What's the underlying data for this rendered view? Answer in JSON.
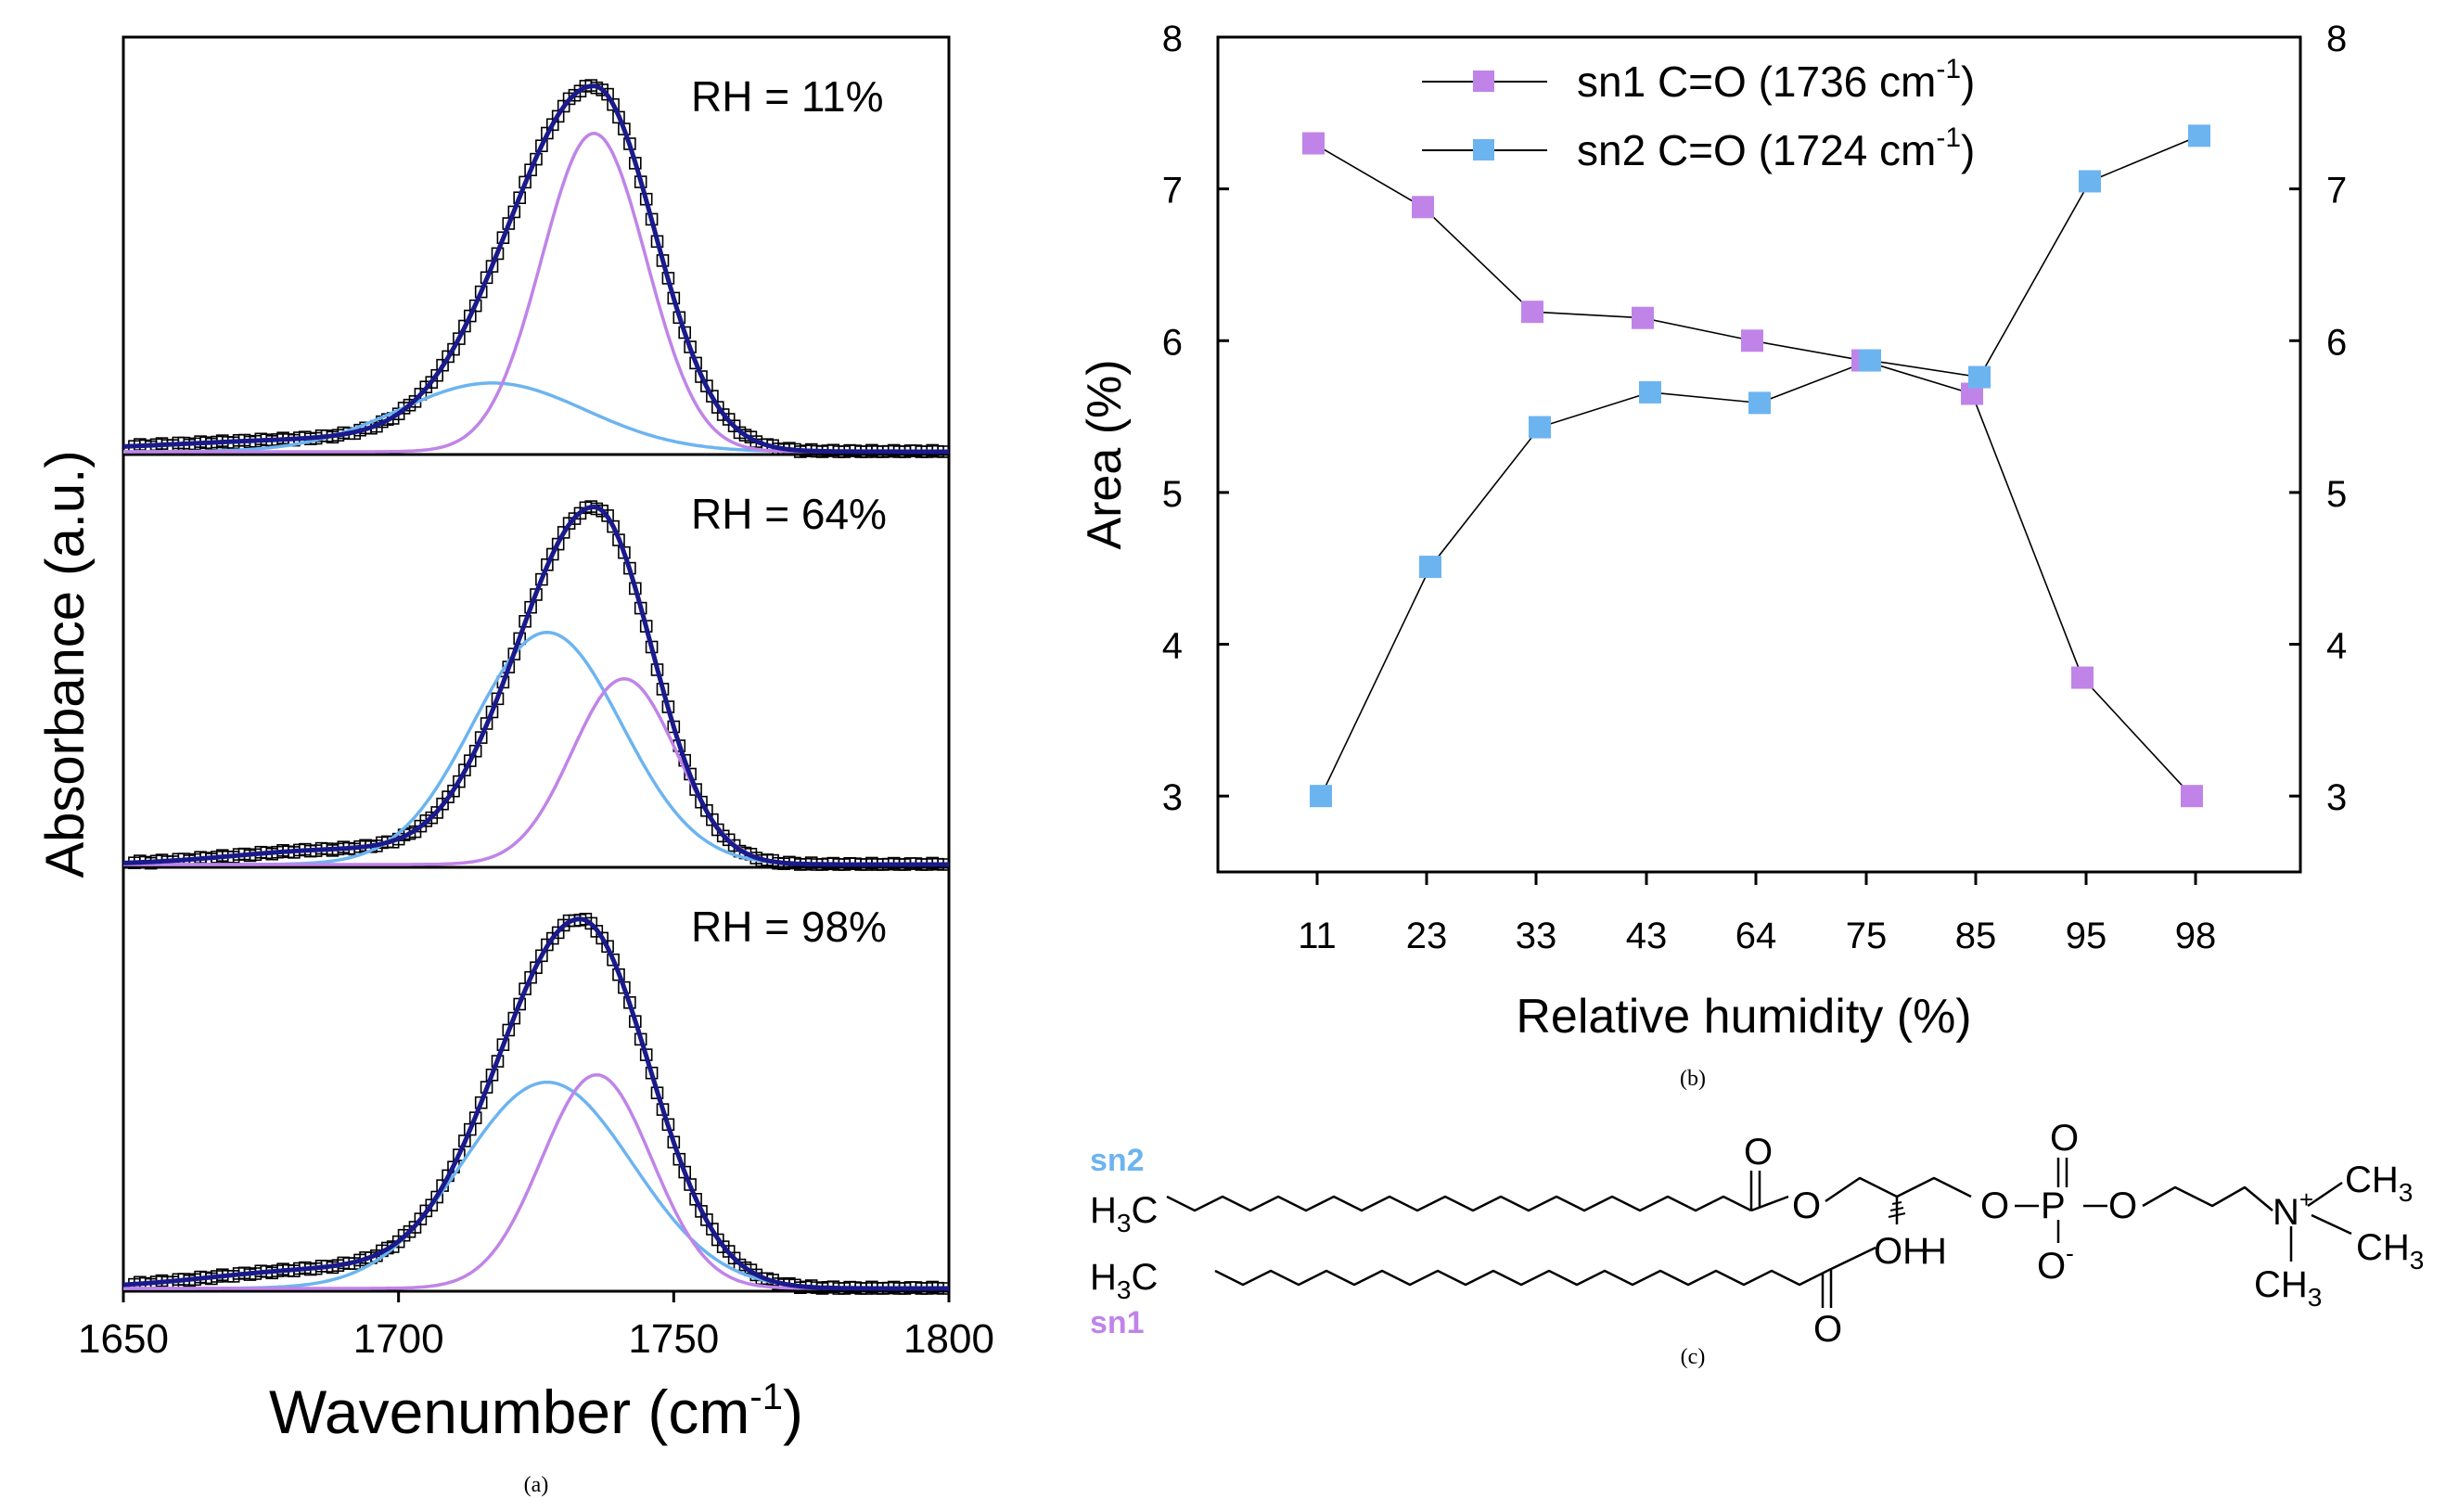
{
  "chart_data": [
    {
      "type": "line",
      "panel": "a",
      "caption": "(a)",
      "title": "",
      "xlabel": "Wavenumber (cm",
      "xlabel_sup": "-1",
      "xlabel_close": ")",
      "ylabel": "Absorbance (a.u.)",
      "xlim": [
        1650,
        1800
      ],
      "x_ticks": [
        1650,
        1700,
        1750,
        1800
      ],
      "x_tick_labels": [
        "1650",
        "1700",
        "1750",
        "1800"
      ],
      "colors": {
        "data": "#000000",
        "fit": "#1a1a8c",
        "sn1": "#c084e8",
        "sn2": "#6cb4f0"
      },
      "subpanels": [
        {
          "label": "RH = 11%",
          "total": {
            "peak": 1735.5,
            "height": 1.0,
            "sigma_left": 15.5,
            "sigma_right": 11.0,
            "tail": {
              "center": 1690,
              "sigma": 30,
              "amp": 0.035
            }
          },
          "sn1": {
            "center": 1735.5,
            "height": 0.88,
            "sigma": 9.5
          },
          "sn2": {
            "center": 1717,
            "height": 0.19,
            "sigma": 17
          }
        },
        {
          "label": "RH = 64%",
          "total": {
            "peak": 1735.5,
            "height": 1.0,
            "sigma_left": 14.0,
            "sigma_right": 10.5,
            "tail": {
              "center": 1688,
              "sigma": 18,
              "amp": 0.04
            }
          },
          "sn1": {
            "center": 1741,
            "height": 0.52,
            "sigma": 9.5
          },
          "sn2": {
            "center": 1727,
            "height": 0.65,
            "sigma": 13.5
          }
        },
        {
          "label": "RH = 98%",
          "total": {
            "peak": 1733,
            "height": 1.0,
            "sigma_left": 15.0,
            "sigma_right": 12.5,
            "tail": {
              "center": 1686,
              "sigma": 20,
              "amp": 0.05
            }
          },
          "sn1": {
            "center": 1736,
            "height": 0.58,
            "sigma": 10.0
          },
          "sn2": {
            "center": 1727,
            "height": 0.56,
            "sigma": 15.5
          }
        }
      ]
    },
    {
      "type": "line",
      "panel": "b",
      "caption": "(b)",
      "title": "",
      "xlabel": "Relative humidity (%)",
      "ylabel": "Area (%)",
      "categories": [
        "11",
        "23",
        "33",
        "43",
        "64",
        "75",
        "85",
        "95",
        "98"
      ],
      "ylim": [
        2.5,
        8
      ],
      "y_ticks": [
        3,
        4,
        5,
        6,
        7,
        8
      ],
      "y_tick_labels": [
        "3",
        "4",
        "5",
        "6",
        "7",
        "8"
      ],
      "legend_position": "top-right",
      "series": [
        {
          "name": "sn1 C=O (1736 cm",
          "name_sup": "-1",
          "name_close": ")",
          "color": "#c084e8",
          "values": [
            7.3,
            6.88,
            6.19,
            6.15,
            6.0,
            5.87,
            5.65,
            3.78,
            3.0
          ]
        },
        {
          "name": "sn2 C=O (1724 cm",
          "name_sup": "-1",
          "name_close": ")",
          "color": "#6cb4f0",
          "values": [
            3.0,
            4.51,
            5.43,
            5.66,
            5.59,
            5.87,
            5.76,
            7.05,
            7.35
          ]
        }
      ]
    }
  ],
  "structure": {
    "caption": "(c)",
    "sn2_label": "sn2",
    "sn1_label": "sn1",
    "methyl_top": "H",
    "methyl_sub": "3",
    "methyl_c": "C",
    "oh": "OH",
    "h": "H",
    "o": "O",
    "p": "P",
    "n": "N",
    "n_charge": "+",
    "o_minus": "-",
    "ch3": "CH",
    "ch3_sub": "3"
  }
}
